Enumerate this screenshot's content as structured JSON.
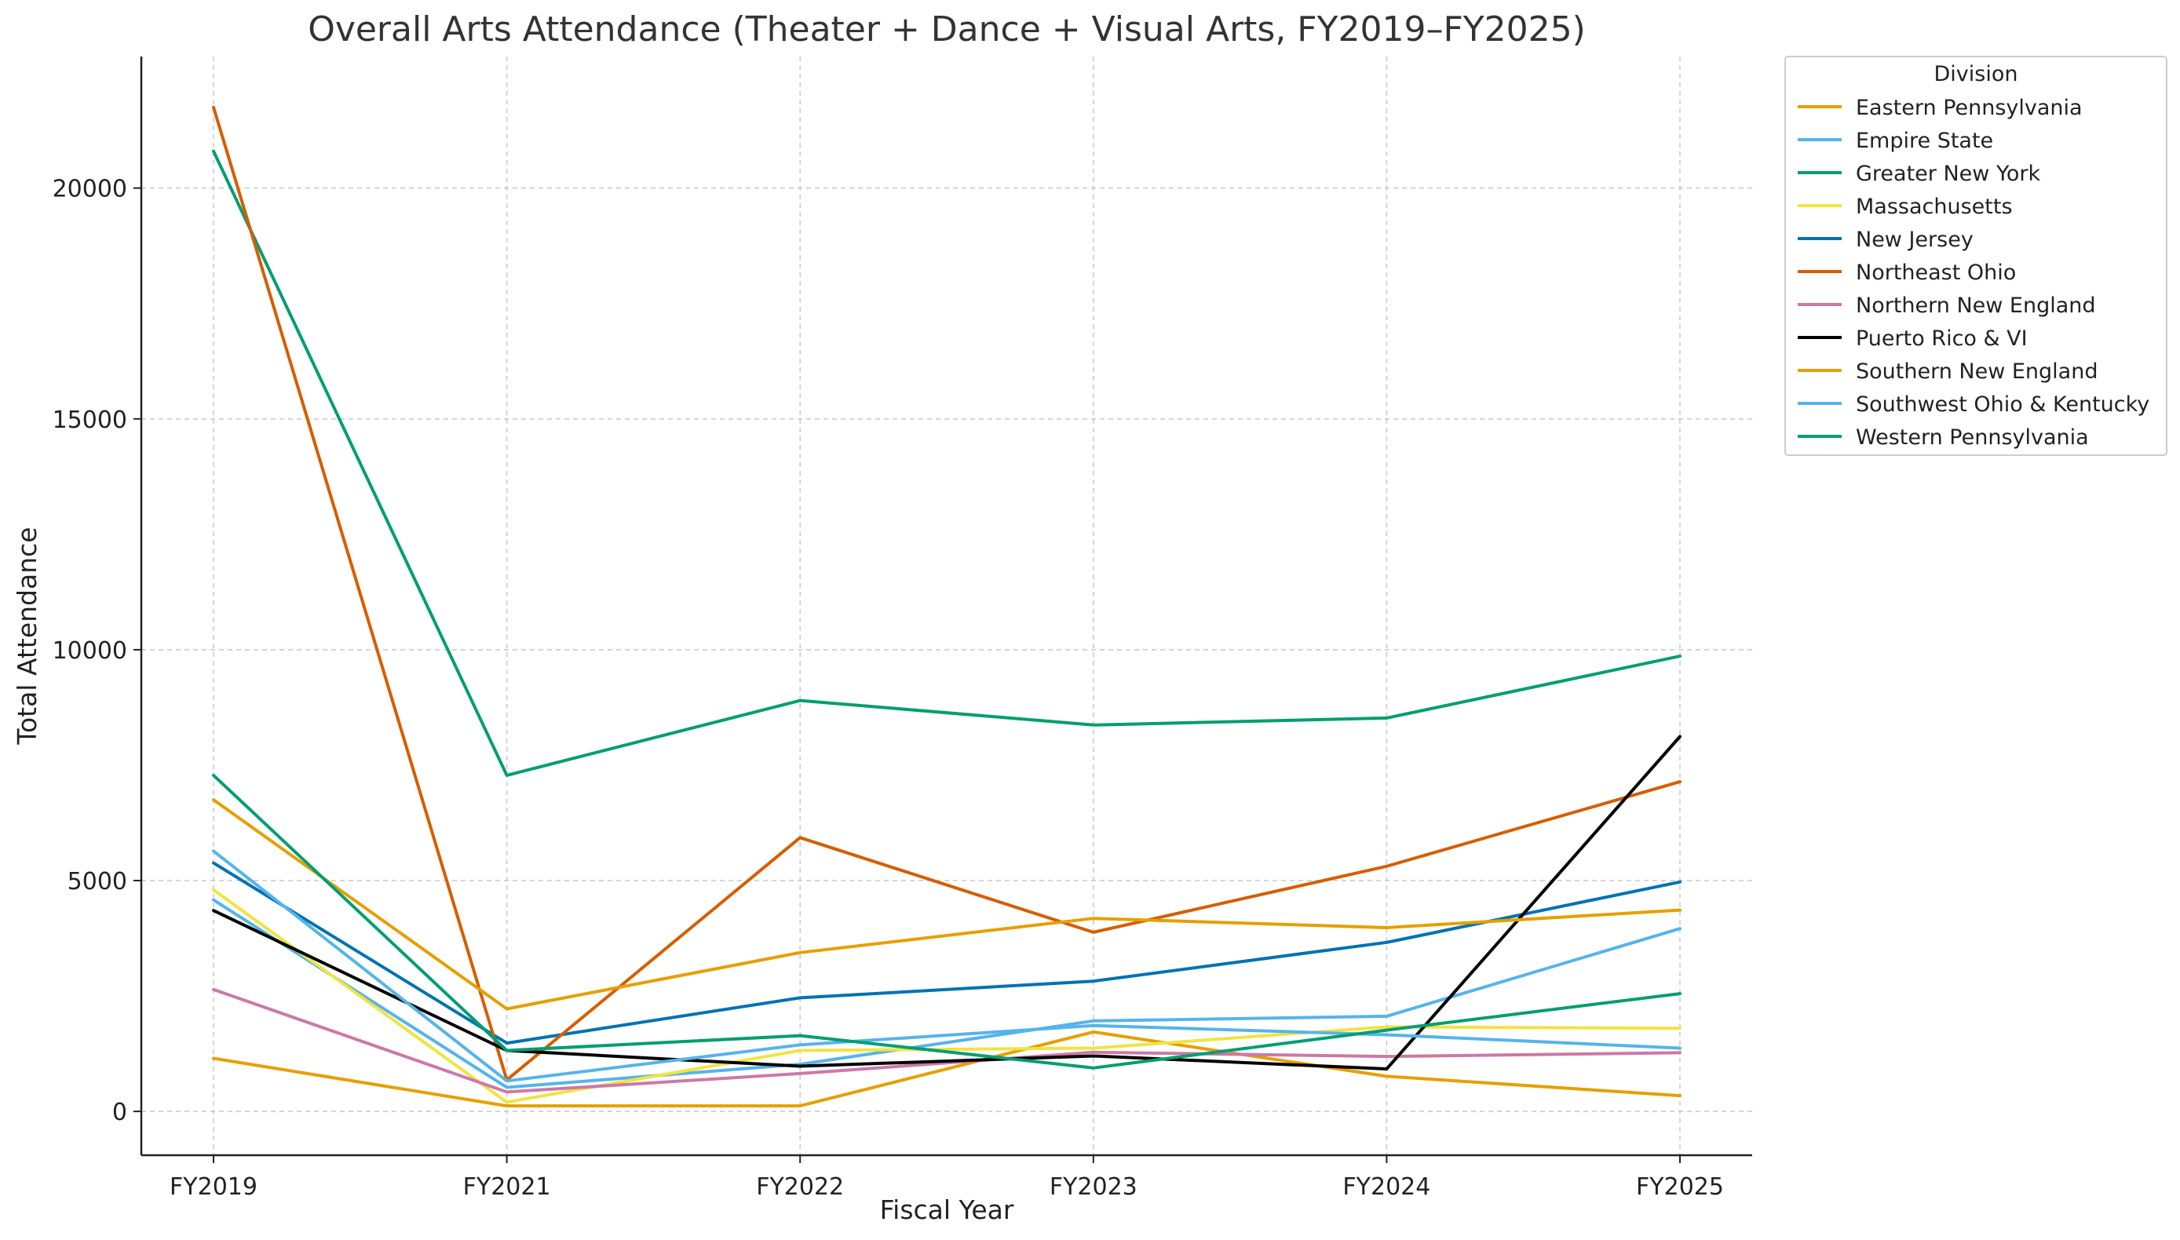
{
  "chart_data": {
    "type": "line",
    "title": "Overall Arts Attendance (Theater + Dance + Visual Arts, FY2019–FY2025)",
    "xlabel": "Fiscal Year",
    "ylabel": "Total Attendance",
    "categories": [
      "FY2019",
      "FY2021",
      "FY2022",
      "FY2023",
      "FY2024",
      "FY2025"
    ],
    "yticks": [
      0,
      5000,
      10000,
      15000,
      20000
    ],
    "ylim": [
      -950,
      22850
    ],
    "grid": true,
    "legend": {
      "title": "Division",
      "placement": "outside-right-top"
    },
    "series": [
      {
        "name": "Eastern Pennsylvania",
        "color": "#E69F00",
        "values": [
          1150,
          120,
          120,
          1720,
          760,
          340
        ]
      },
      {
        "name": "Empire State",
        "color": "#56B4E9",
        "values": [
          4580,
          520,
          1020,
          1960,
          2060,
          3960
        ]
      },
      {
        "name": "Greater New York",
        "color": "#009E73",
        "values": [
          20800,
          7280,
          8900,
          8370,
          8520,
          9860
        ]
      },
      {
        "name": "Massachusetts",
        "color": "#F0E442",
        "values": [
          4800,
          200,
          1320,
          1370,
          1830,
          1800
        ]
      },
      {
        "name": "New Jersey",
        "color": "#0072B2",
        "values": [
          5380,
          1480,
          2460,
          2820,
          3660,
          4970
        ]
      },
      {
        "name": "Northeast Ohio",
        "color": "#D55E00",
        "values": [
          21750,
          680,
          5930,
          3880,
          5310,
          7140
        ]
      },
      {
        "name": "Northern New England",
        "color": "#CC79A7",
        "values": [
          2640,
          420,
          820,
          1280,
          1190,
          1270
        ]
      },
      {
        "name": "Puerto Rico & VI",
        "color": "#000000",
        "values": [
          4350,
          1320,
          980,
          1200,
          920,
          8120
        ]
      },
      {
        "name": "Southern New England",
        "color": "#E69F00",
        "values": [
          6750,
          2220,
          3440,
          4180,
          3980,
          4360
        ]
      },
      {
        "name": "Southwest Ohio & Kentucky",
        "color": "#56B4E9",
        "values": [
          5640,
          660,
          1440,
          1860,
          1660,
          1370
        ]
      },
      {
        "name": "Western Pennsylvania",
        "color": "#009E73",
        "values": [
          7280,
          1320,
          1640,
          940,
          1760,
          2550
        ]
      }
    ]
  }
}
